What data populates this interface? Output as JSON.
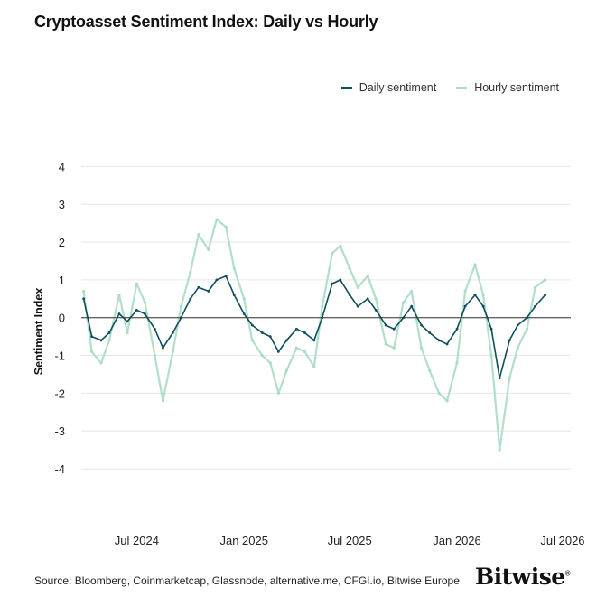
{
  "colors": {
    "daily": "#0d4f5c",
    "hourly": "#a8dcc4",
    "grid": "#e6e6e6",
    "zero": "#333333"
  },
  "source": "Source: Bloomberg, Coinmarketcap, Glassnode, alternative.me, CFGI.io, Bitwise Europe",
  "logo": "Bitwise",
  "chart_data": {
    "type": "line",
    "title": "Cryptoasset Sentiment Index: Daily vs Hourly",
    "ylabel": "Sentiment Index",
    "ylim": [
      -4.5,
      4.2
    ],
    "yticks": [
      4,
      3,
      2,
      1,
      0,
      -1,
      -2,
      -3,
      -4
    ],
    "xlim": [
      "2024-03-28",
      "2026-07-15"
    ],
    "xticks": [
      {
        "date": "2024-07-01",
        "label": "Jul 2024"
      },
      {
        "date": "2025-01-01",
        "label": "Jan 2025"
      },
      {
        "date": "2025-07-01",
        "label": "Jul 2025"
      },
      {
        "date": "2026-01-01",
        "label": "Jan 2026"
      },
      {
        "date": "2026-07-01",
        "label": "Jul 2026"
      }
    ],
    "grid": true,
    "legend_position": "top-right",
    "series": [
      {
        "name": "Daily sentiment",
        "x": [
          "2024-04-01",
          "2024-04-15",
          "2024-05-01",
          "2024-05-15",
          "2024-06-01",
          "2024-06-15",
          "2024-07-01",
          "2024-07-15",
          "2024-08-01",
          "2024-08-15",
          "2024-09-01",
          "2024-09-15",
          "2024-10-01",
          "2024-10-15",
          "2024-11-01",
          "2024-11-15",
          "2024-12-01",
          "2024-12-15",
          "2025-01-01",
          "2025-01-15",
          "2025-02-01",
          "2025-02-15",
          "2025-03-01",
          "2025-03-15",
          "2025-04-01",
          "2025-04-15",
          "2025-05-01",
          "2025-05-15",
          "2025-06-01",
          "2025-06-15",
          "2025-07-01",
          "2025-07-15",
          "2025-08-01",
          "2025-08-15",
          "2025-09-01",
          "2025-09-15",
          "2025-10-01",
          "2025-10-15",
          "2025-11-01",
          "2025-11-15",
          "2025-12-01",
          "2025-12-15",
          "2026-01-01",
          "2026-01-15",
          "2026-02-01",
          "2026-02-15",
          "2026-03-01",
          "2026-03-15",
          "2026-04-01",
          "2026-04-15",
          "2026-05-01",
          "2026-05-15",
          "2026-06-01"
        ],
        "values": [
          0.5,
          -0.5,
          -0.6,
          -0.4,
          0.1,
          -0.1,
          0.2,
          0.1,
          -0.3,
          -0.8,
          -0.4,
          0.0,
          0.5,
          0.8,
          0.7,
          1.0,
          1.1,
          0.6,
          0.1,
          -0.2,
          -0.4,
          -0.5,
          -0.9,
          -0.6,
          -0.3,
          -0.4,
          -0.6,
          0.0,
          0.9,
          1.0,
          0.6,
          0.3,
          0.5,
          0.2,
          -0.2,
          -0.3,
          0.0,
          0.3,
          -0.2,
          -0.4,
          -0.6,
          -0.7,
          -0.3,
          0.3,
          0.6,
          0.3,
          -0.3,
          -1.6,
          -0.6,
          -0.2,
          0.0,
          0.3,
          0.6
        ]
      },
      {
        "name": "Hourly sentiment",
        "x": [
          "2024-04-01",
          "2024-04-15",
          "2024-05-01",
          "2024-05-15",
          "2024-06-01",
          "2024-06-15",
          "2024-07-01",
          "2024-07-15",
          "2024-08-01",
          "2024-08-15",
          "2024-09-01",
          "2024-09-15",
          "2024-10-01",
          "2024-10-15",
          "2024-11-01",
          "2024-11-15",
          "2024-12-01",
          "2024-12-15",
          "2025-01-01",
          "2025-01-15",
          "2025-02-01",
          "2025-02-15",
          "2025-03-01",
          "2025-03-15",
          "2025-04-01",
          "2025-04-15",
          "2025-05-01",
          "2025-05-15",
          "2025-06-01",
          "2025-06-15",
          "2025-07-01",
          "2025-07-15",
          "2025-08-01",
          "2025-08-15",
          "2025-09-01",
          "2025-09-15",
          "2025-10-01",
          "2025-10-15",
          "2025-11-01",
          "2025-11-15",
          "2025-12-01",
          "2025-12-15",
          "2026-01-01",
          "2026-01-15",
          "2026-02-01",
          "2026-02-15",
          "2026-03-01",
          "2026-03-15",
          "2026-04-01",
          "2026-04-15",
          "2026-05-01",
          "2026-05-15",
          "2026-06-01"
        ],
        "values": [
          0.7,
          -0.9,
          -1.2,
          -0.6,
          0.6,
          -0.4,
          0.9,
          0.4,
          -1.0,
          -2.2,
          -0.9,
          0.3,
          1.2,
          2.2,
          1.8,
          2.6,
          2.4,
          1.3,
          0.5,
          -0.6,
          -1.0,
          -1.2,
          -2.0,
          -1.4,
          -0.8,
          -0.9,
          -1.3,
          0.3,
          1.7,
          1.9,
          1.3,
          0.8,
          1.1,
          0.5,
          -0.7,
          -0.8,
          0.4,
          0.7,
          -0.8,
          -1.4,
          -2.0,
          -2.2,
          -1.2,
          0.7,
          1.4,
          0.6,
          -1.0,
          -3.5,
          -1.6,
          -0.8,
          -0.3,
          0.8,
          1.0
        ]
      }
    ]
  }
}
